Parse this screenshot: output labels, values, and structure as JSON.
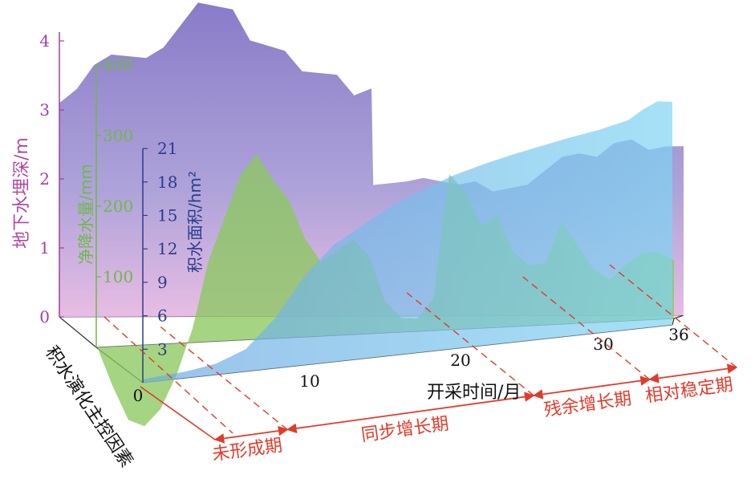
{
  "chart_data": {
    "type": "area",
    "x_axis": {
      "label": "开采时间/月",
      "ticks": [
        "0",
        "10",
        "20",
        "30",
        "36"
      ],
      "range": [
        0,
        36
      ]
    },
    "depth_axis": {
      "label": "积水演化主控因素"
    },
    "series": [
      {
        "name": "地下水埋深/m",
        "axis_ticks": [
          "0",
          "1",
          "2",
          "3",
          "4"
        ],
        "range": [
          0,
          4
        ],
        "color": "#8878c6",
        "values": [
          [
            0,
            3.1
          ],
          [
            1,
            3.3
          ],
          [
            2,
            3.65
          ],
          [
            3,
            3.8
          ],
          [
            5,
            3.75
          ],
          [
            6,
            3.9
          ],
          [
            8,
            4.55
          ],
          [
            9,
            4.5
          ],
          [
            10,
            4.45
          ],
          [
            11,
            4.0
          ],
          [
            13,
            3.85
          ],
          [
            14,
            3.55
          ],
          [
            16,
            3.5
          ],
          [
            17,
            3.2
          ],
          [
            18,
            3.3
          ],
          [
            18.1,
            1.9
          ],
          [
            20,
            1.95
          ],
          [
            21,
            2.0
          ],
          [
            23,
            1.9
          ],
          [
            24,
            1.95
          ],
          [
            25,
            1.8
          ],
          [
            27,
            1.9
          ],
          [
            28,
            2.1
          ],
          [
            29,
            2.3
          ],
          [
            30,
            2.35
          ],
          [
            31,
            2.3
          ],
          [
            32,
            2.5
          ],
          [
            33,
            2.55
          ],
          [
            34,
            2.4
          ],
          [
            35,
            2.45
          ],
          [
            36,
            2.45
          ]
        ]
      },
      {
        "name": "净降水量/mm",
        "axis_ticks": [
          "100",
          "200",
          "300",
          "400"
        ],
        "range": [
          0,
          400
        ],
        "color": "#8cc860",
        "values": [
          [
            0,
            4
          ],
          [
            1,
            -55
          ],
          [
            2,
            -105
          ],
          [
            3,
            -115
          ],
          [
            4,
            -92
          ],
          [
            5,
            -45
          ],
          [
            6,
            20
          ],
          [
            7,
            115
          ],
          [
            8,
            175
          ],
          [
            9,
            235
          ],
          [
            10,
            262
          ],
          [
            11,
            225
          ],
          [
            12,
            195
          ],
          [
            13,
            140
          ],
          [
            14,
            105
          ],
          [
            15,
            120
          ],
          [
            16,
            135
          ],
          [
            17,
            110
          ],
          [
            18,
            45
          ],
          [
            19,
            20
          ],
          [
            20,
            18
          ],
          [
            21,
            45
          ],
          [
            22,
            220
          ],
          [
            23,
            195
          ],
          [
            24,
            145
          ],
          [
            25,
            160
          ],
          [
            26,
            105
          ],
          [
            27,
            85
          ],
          [
            28,
            88
          ],
          [
            29,
            145
          ],
          [
            30,
            110
          ],
          [
            31,
            75
          ],
          [
            32,
            60
          ],
          [
            33,
            80
          ],
          [
            34,
            95
          ],
          [
            35,
            95
          ],
          [
            36,
            83
          ]
        ]
      },
      {
        "name": "积水面积/hm²",
        "axis_ticks": [
          "3",
          "6",
          "9",
          "12",
          "15",
          "18",
          "21"
        ],
        "range": [
          0,
          21
        ],
        "color": "#6fc0e6",
        "values": [
          [
            0,
            0.3
          ],
          [
            3,
            0.6
          ],
          [
            5,
            1.0
          ],
          [
            7,
            2.0
          ],
          [
            9,
            4.5
          ],
          [
            11,
            8.0
          ],
          [
            13,
            10.5
          ],
          [
            15,
            12.0
          ],
          [
            17,
            13.5
          ],
          [
            19,
            14.5
          ],
          [
            21,
            15.5
          ],
          [
            23,
            16.2
          ],
          [
            25,
            16.8
          ],
          [
            27,
            17.3
          ],
          [
            29,
            17.8
          ],
          [
            31,
            18.2
          ],
          [
            33,
            18.8
          ],
          [
            34,
            19.6
          ],
          [
            35,
            20.2
          ],
          [
            36,
            20.0
          ]
        ]
      }
    ],
    "phases": [
      {
        "name": "未形成期",
        "range": [
          0,
          5
        ]
      },
      {
        "name": "同步增长期",
        "range": [
          5,
          22
        ]
      },
      {
        "name": "残余增长期",
        "range": [
          22,
          30
        ]
      },
      {
        "name": "相对稳定期",
        "range": [
          30,
          36
        ]
      }
    ],
    "grid": false,
    "legend": "none"
  }
}
